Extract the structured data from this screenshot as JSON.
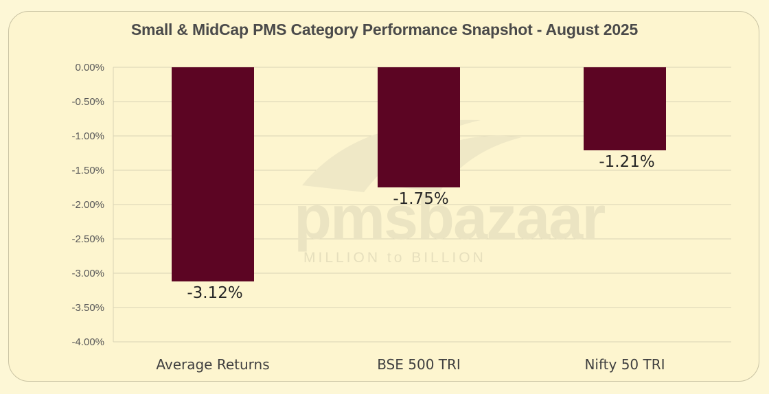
{
  "chart_data": {
    "type": "bar",
    "title": "Small & MidCap PMS Category Performance Snapshot - August 2025",
    "categories": [
      "Average Returns",
      "BSE 500 TRI",
      "Nifty 50 TRI"
    ],
    "values": [
      -3.12,
      -1.75,
      -1.21
    ],
    "data_labels": [
      "-3.12%",
      "-1.75%",
      "-1.21%"
    ],
    "ylim": [
      -4.0,
      0.0
    ],
    "yticks": [
      0.0,
      -0.5,
      -1.0,
      -1.5,
      -2.0,
      -2.5,
      -3.0,
      -3.5,
      -4.0
    ],
    "ytick_labels": [
      "0.00%",
      "-0.50%",
      "-1.00%",
      "-1.50%",
      "-2.00%",
      "-2.50%",
      "-3.00%",
      "-3.50%",
      "-4.00%"
    ],
    "grid": true,
    "legend": "none",
    "bar_color": "#5c0523"
  },
  "watermark": {
    "brand": "pmsbazaar",
    "tagline": "MILLION to BILLION"
  }
}
